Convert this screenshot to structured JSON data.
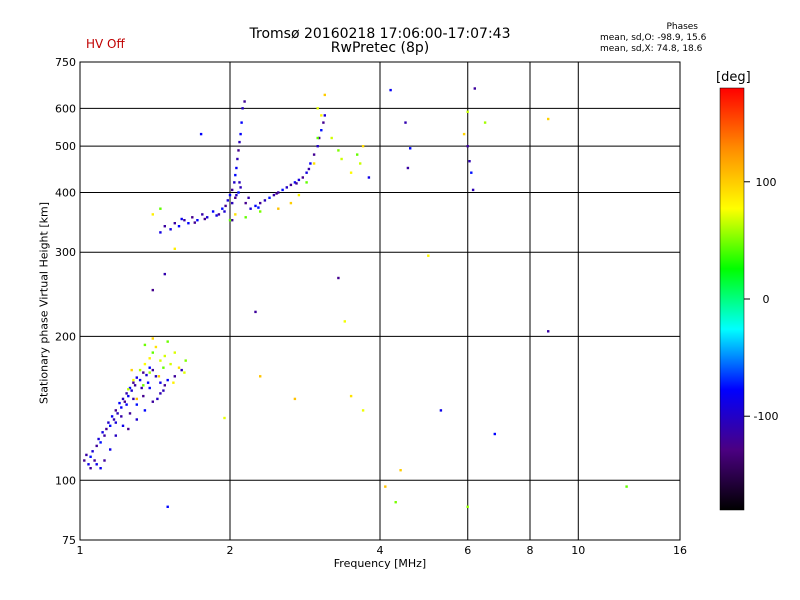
{
  "header": {
    "title_line1": "Tromsø 20160218 17:06:00-17:07:43",
    "title_line2": "RwPretec (8p)",
    "hv_status": "HV Off"
  },
  "phases": {
    "title": "Phases",
    "o_line": "mean, sd,O: -98.9, 15.6",
    "x_line": "mean, sd,X:  74.8, 18.6"
  },
  "colors": {
    "hv_status": "#c00000",
    "scale": [
      "#000000",
      "#4b0082",
      "#0000ff",
      "#00ffff",
      "#00ff00",
      "#ffff00",
      "#ff8c00",
      "#ff0000"
    ]
  },
  "colorbar": {
    "label": "[deg]",
    "range": [
      -180,
      180
    ],
    "ticks": [
      {
        "value": 100,
        "label": "100"
      },
      {
        "value": 0,
        "label": "0"
      },
      {
        "value": -100,
        "label": "-100"
      }
    ]
  },
  "chart_data": {
    "type": "scatter",
    "xlabel": "Frequency [MHz]",
    "ylabel": "Stationary phase Virtual Height [km]",
    "x_scale": "log",
    "y_scale": "log",
    "xlim": [
      1,
      16
    ],
    "ylim": [
      75,
      750
    ],
    "grid": true,
    "x_ticks": [
      1,
      2,
      4,
      6,
      8,
      10,
      16
    ],
    "y_ticks": [
      75,
      100,
      200,
      300,
      400,
      500,
      600,
      750
    ],
    "x_gridlines": [
      2,
      4,
      6,
      8,
      10
    ],
    "y_gridlines": [
      100,
      200,
      300,
      400,
      500,
      600
    ],
    "series": [
      {
        "name": "O",
        "phase_mean": -98.9,
        "phase_sd": 15.6,
        "points": [
          [
            1.02,
            110
          ],
          [
            1.03,
            113
          ],
          [
            1.04,
            108
          ],
          [
            1.05,
            112
          ],
          [
            1.06,
            115
          ],
          [
            1.07,
            110
          ],
          [
            1.08,
            118
          ],
          [
            1.09,
            122
          ],
          [
            1.1,
            120
          ],
          [
            1.11,
            126
          ],
          [
            1.12,
            124
          ],
          [
            1.13,
            128
          ],
          [
            1.14,
            132
          ],
          [
            1.15,
            130
          ],
          [
            1.16,
            136
          ],
          [
            1.17,
            134
          ],
          [
            1.18,
            140
          ],
          [
            1.19,
            138
          ],
          [
            1.2,
            145
          ],
          [
            1.21,
            142
          ],
          [
            1.22,
            148
          ],
          [
            1.23,
            146
          ],
          [
            1.24,
            152
          ],
          [
            1.25,
            150
          ],
          [
            1.26,
            156
          ],
          [
            1.27,
            154
          ],
          [
            1.28,
            160
          ],
          [
            1.29,
            158
          ],
          [
            1.3,
            164
          ],
          [
            1.32,
            162
          ],
          [
            1.34,
            168
          ],
          [
            1.36,
            166
          ],
          [
            1.38,
            172
          ],
          [
            1.4,
            170
          ],
          [
            1.42,
            165
          ],
          [
            1.45,
            160
          ],
          [
            1.48,
            158
          ],
          [
            1.5,
            162
          ],
          [
            1.55,
            165
          ],
          [
            1.6,
            170
          ],
          [
            1.12,
            110
          ],
          [
            1.15,
            116
          ],
          [
            1.18,
            124
          ],
          [
            1.22,
            130
          ],
          [
            1.26,
            138
          ],
          [
            1.3,
            144
          ],
          [
            1.34,
            150
          ],
          [
            1.38,
            156
          ],
          [
            1.25,
            128
          ],
          [
            1.3,
            134
          ],
          [
            1.35,
            140
          ],
          [
            1.4,
            146
          ],
          [
            1.45,
            152
          ],
          [
            1.05,
            106
          ],
          [
            1.08,
            108
          ],
          [
            1.1,
            106
          ],
          [
            1.18,
            132
          ],
          [
            1.21,
            136
          ],
          [
            1.24,
            144
          ],
          [
            1.28,
            148
          ],
          [
            1.33,
            156
          ],
          [
            1.37,
            160
          ],
          [
            1.43,
            148
          ],
          [
            1.47,
            154
          ],
          [
            1.4,
            250
          ],
          [
            1.45,
            330
          ],
          [
            1.48,
            340
          ],
          [
            1.52,
            335
          ],
          [
            1.55,
            345
          ],
          [
            1.58,
            340
          ],
          [
            1.62,
            350
          ],
          [
            1.65,
            345
          ],
          [
            1.68,
            355
          ],
          [
            1.72,
            350
          ],
          [
            1.76,
            360
          ],
          [
            1.8,
            355
          ],
          [
            1.85,
            365
          ],
          [
            1.9,
            360
          ],
          [
            1.93,
            370
          ],
          [
            1.96,
            375
          ],
          [
            1.98,
            385
          ],
          [
            2.0,
            395
          ],
          [
            2.02,
            405
          ],
          [
            2.04,
            420
          ],
          [
            2.05,
            435
          ],
          [
            2.06,
            450
          ],
          [
            2.07,
            470
          ],
          [
            2.08,
            490
          ],
          [
            2.09,
            510
          ],
          [
            2.1,
            530
          ],
          [
            2.11,
            560
          ],
          [
            2.12,
            600
          ],
          [
            2.14,
            620
          ],
          [
            2.05,
            390
          ],
          [
            2.08,
            400
          ],
          [
            2.1,
            410
          ],
          [
            1.6,
            352
          ],
          [
            1.7,
            346
          ],
          [
            1.78,
            352
          ],
          [
            1.88,
            358
          ],
          [
            1.95,
            365
          ],
          [
            2.02,
            380
          ],
          [
            2.06,
            395
          ],
          [
            2.09,
            420
          ],
          [
            2.15,
            380
          ],
          [
            2.2,
            370
          ],
          [
            2.25,
            375
          ],
          [
            2.3,
            380
          ],
          [
            2.35,
            385
          ],
          [
            2.4,
            390
          ],
          [
            2.45,
            395
          ],
          [
            2.5,
            400
          ],
          [
            2.55,
            405
          ],
          [
            2.6,
            410
          ],
          [
            2.65,
            415
          ],
          [
            2.7,
            420
          ],
          [
            2.75,
            425
          ],
          [
            2.8,
            430
          ],
          [
            2.85,
            440
          ],
          [
            2.9,
            460
          ],
          [
            2.95,
            480
          ],
          [
            3.0,
            500
          ],
          [
            3.02,
            520
          ],
          [
            3.05,
            540
          ],
          [
            3.08,
            560
          ],
          [
            3.1,
            580
          ],
          [
            1.48,
            270
          ],
          [
            1.75,
            530
          ],
          [
            2.25,
            225
          ],
          [
            3.3,
            265
          ],
          [
            3.8,
            430
          ],
          [
            4.2,
            655
          ],
          [
            4.5,
            560
          ],
          [
            4.55,
            450
          ],
          [
            4.6,
            495
          ],
          [
            5.3,
            140
          ],
          [
            6.0,
            500
          ],
          [
            6.05,
            465
          ],
          [
            6.1,
            440
          ],
          [
            6.15,
            405
          ],
          [
            6.2,
            660
          ],
          [
            6.8,
            125
          ],
          [
            8.7,
            205
          ],
          [
            1.5,
            88
          ],
          [
            2.02,
            350
          ],
          [
            2.18,
            390
          ],
          [
            2.28,
            372
          ],
          [
            2.48,
            398
          ],
          [
            2.72,
            418
          ],
          [
            2.88,
            448
          ]
        ]
      },
      {
        "name": "X",
        "phase_mean": 74.8,
        "phase_sd": 18.6,
        "points": [
          [
            1.25,
            155
          ],
          [
            1.28,
            162
          ],
          [
            1.32,
            170
          ],
          [
            1.35,
            175
          ],
          [
            1.38,
            180
          ],
          [
            1.4,
            185
          ],
          [
            1.42,
            190
          ],
          [
            1.45,
            178
          ],
          [
            1.48,
            182
          ],
          [
            1.52,
            175
          ],
          [
            1.55,
            185
          ],
          [
            1.58,
            172
          ],
          [
            1.62,
            168
          ],
          [
            1.35,
            192
          ],
          [
            1.4,
            198
          ],
          [
            1.5,
            195
          ],
          [
            1.3,
            148
          ],
          [
            1.34,
            158
          ],
          [
            1.44,
            165
          ],
          [
            1.54,
            160
          ],
          [
            1.63,
            178
          ],
          [
            1.38,
            168
          ],
          [
            1.47,
            172
          ],
          [
            1.27,
            170
          ],
          [
            1.4,
            360
          ],
          [
            1.45,
            370
          ],
          [
            1.55,
            305
          ],
          [
            2.0,
            350
          ],
          [
            2.05,
            360
          ],
          [
            2.15,
            355
          ],
          [
            2.3,
            365
          ],
          [
            2.5,
            370
          ],
          [
            2.65,
            380
          ],
          [
            2.75,
            395
          ],
          [
            2.85,
            420
          ],
          [
            2.95,
            460
          ],
          [
            3.0,
            520
          ],
          [
            3.05,
            580
          ],
          [
            3.1,
            640
          ],
          [
            3.0,
            600
          ],
          [
            3.2,
            520
          ],
          [
            3.3,
            490
          ],
          [
            3.35,
            470
          ],
          [
            3.5,
            440
          ],
          [
            3.6,
            480
          ],
          [
            3.7,
            500
          ],
          [
            3.65,
            460
          ],
          [
            3.4,
            215
          ],
          [
            4.1,
            97
          ],
          [
            4.3,
            90
          ],
          [
            4.4,
            105
          ],
          [
            3.7,
            140
          ],
          [
            3.5,
            150
          ],
          [
            2.3,
            165
          ],
          [
            2.7,
            148
          ],
          [
            1.95,
            135
          ],
          [
            5.0,
            295
          ],
          [
            6.0,
            590
          ],
          [
            5.9,
            530
          ],
          [
            6.5,
            560
          ],
          [
            8.7,
            570
          ],
          [
            12.5,
            97
          ],
          [
            6.0,
            88
          ]
        ]
      }
    ]
  }
}
